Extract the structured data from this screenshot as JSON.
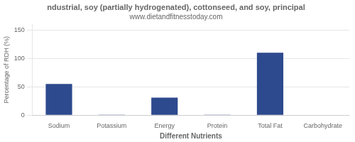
{
  "chart_data": {
    "type": "bar",
    "title": "ndustrial, soy (partially hydrogenated), cottonseed, and soy, principal",
    "subtitle": "www.dietandfitnesstoday.com",
    "categories": [
      "Sodium",
      "Potassium",
      "Energy",
      "Protein",
      "Total Fat",
      "Carbohydrate"
    ],
    "values": [
      55,
      1,
      31,
      1,
      110,
      0
    ],
    "color": "#2e4a8e",
    "xlabel": "Different Nutrients",
    "ylabel": "Percentage of RDH (%)",
    "ylim": [
      0,
      160
    ],
    "yticks": [
      0,
      50,
      100,
      150
    ],
    "grid": true
  }
}
